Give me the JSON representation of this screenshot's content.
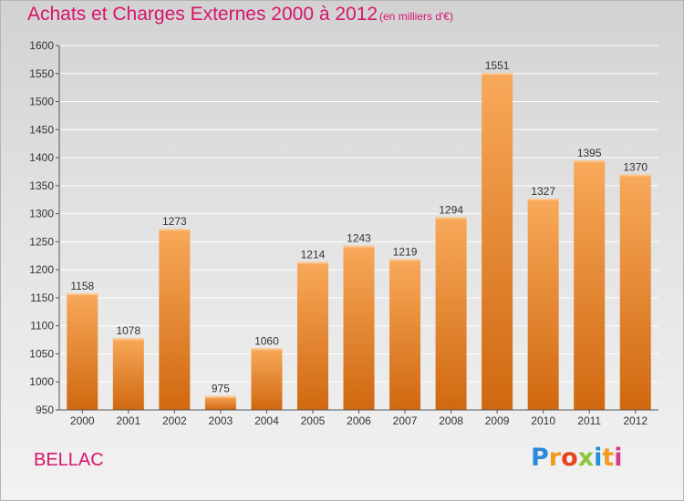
{
  "title": "Achats et Charges Externes 2000 à 2012",
  "subtitle": "(en milliers d'€)",
  "place": "BELLAC",
  "brand": {
    "letters": [
      "P",
      "r",
      "o",
      "x",
      "i",
      "t",
      "i"
    ],
    "colors": [
      "#2a8ad8",
      "#f29a1e",
      "#e8431c",
      "#8cc63f",
      "#1e90d8",
      "#f29a1e",
      "#d63a8a"
    ]
  },
  "colors": {
    "bar_top": "#f8a95a",
    "bar_bottom": "#d06810",
    "title": "#d8146c"
  },
  "chart_data": {
    "type": "bar",
    "title": "Achats et Charges Externes 2000 à 2012",
    "subtitle": "(en milliers d'€)",
    "categories": [
      "2000",
      "2001",
      "2002",
      "2003",
      "2004",
      "2005",
      "2006",
      "2007",
      "2008",
      "2009",
      "2010",
      "2011",
      "2012"
    ],
    "values": [
      1158,
      1078,
      1273,
      975,
      1060,
      1214,
      1243,
      1219,
      1294,
      1551,
      1327,
      1395,
      1370
    ],
    "ylim": [
      950,
      1600
    ],
    "yticks": [
      950,
      1000,
      1050,
      1100,
      1150,
      1200,
      1250,
      1300,
      1350,
      1400,
      1450,
      1500,
      1550,
      1600
    ],
    "grid": true,
    "xlabel": "",
    "ylabel": ""
  }
}
